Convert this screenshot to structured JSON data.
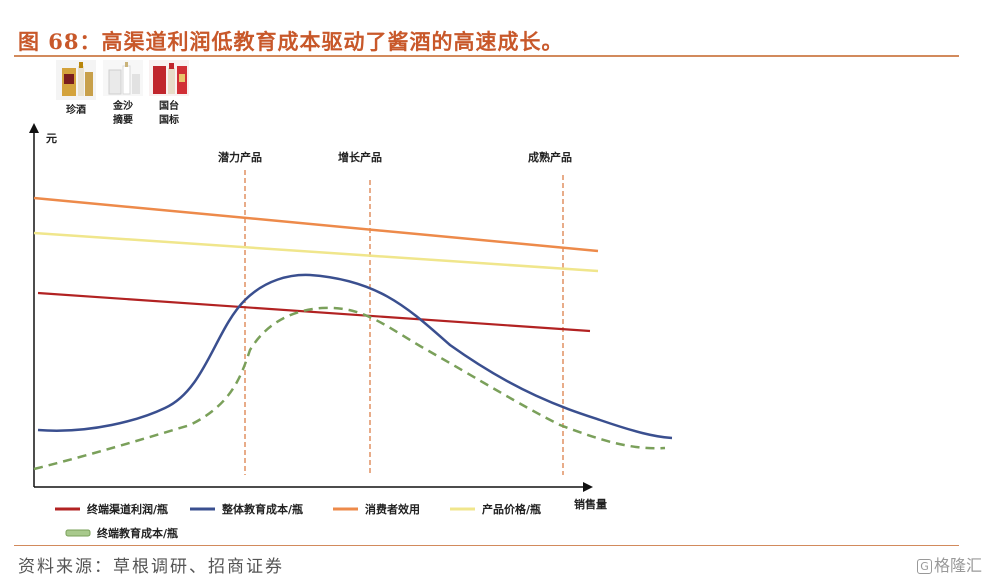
{
  "header": {
    "title": "图 68：高渠道利润低教育成本驱动了酱酒的高速成长。"
  },
  "products": [
    {
      "label_lines": [
        "珍酒"
      ]
    },
    {
      "label_lines": [
        "金沙",
        "摘要"
      ]
    },
    {
      "label_lines": [
        "国台",
        "国标"
      ]
    }
  ],
  "diagram": {
    "y_axis_label": "元",
    "x_axis_label": "销售量",
    "phases": [
      "潜力产品",
      "增长产品",
      "成熟产品"
    ],
    "legend": [
      {
        "label": "终端渠道利润/瓶",
        "color": "#b22222",
        "style": "solid"
      },
      {
        "label": "整体教育成本/瓶",
        "color": "#3a4f8f",
        "style": "solid"
      },
      {
        "label": "消费者效用",
        "color": "#ed8a4a",
        "style": "solid"
      },
      {
        "label": "产品价格/瓶",
        "color": "#f0e68c",
        "style": "solid"
      },
      {
        "label": "终端教育成本/瓶",
        "color": "#7aa05a",
        "style": "dashed"
      }
    ]
  },
  "footer": {
    "source": "资料来源：草根调研、招商证券",
    "watermark": "格隆汇"
  }
}
